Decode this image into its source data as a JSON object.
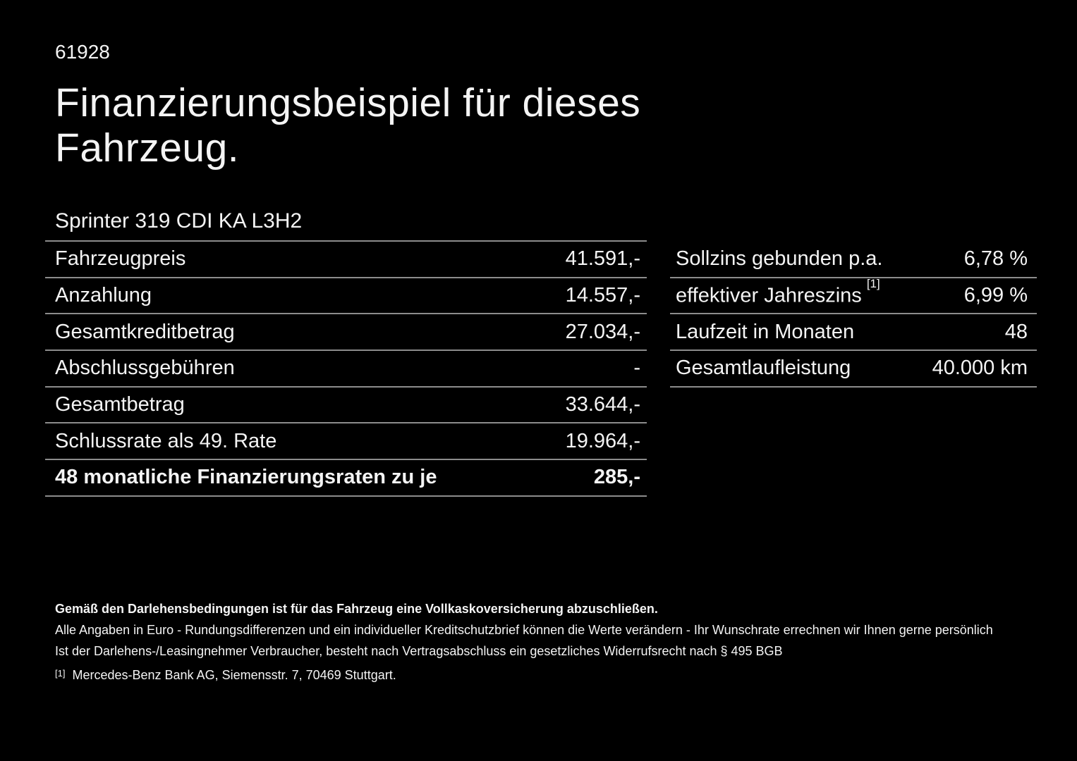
{
  "header": {
    "offer_id": "61928",
    "title_line1": "Finanzierungsbeispiel für dieses",
    "title_line2": "Fahrzeug.",
    "vehicle_model": "Sprinter 319 CDI KA L3H2"
  },
  "left_table": {
    "rows": [
      {
        "label": "Fahrzeugpreis",
        "value": "41.591,-"
      },
      {
        "label": "Anzahlung",
        "value": "14.557,-"
      },
      {
        "label": "Gesamtkreditbetrag",
        "value": "27.034,-"
      },
      {
        "label": "Abschlussgebühren",
        "value": "-"
      },
      {
        "label": "Gesamtbetrag",
        "value": "33.644,-"
      },
      {
        "label": "Schlussrate als 49. Rate",
        "value": "19.964,-"
      },
      {
        "label": "48 monatliche Finanzierungsraten zu je",
        "value": "285,-"
      }
    ]
  },
  "right_table": {
    "rows": [
      {
        "label": "Sollzins gebunden p.a.",
        "value": "6,78 %"
      },
      {
        "label": "effektiver Jahreszins",
        "footnote_marker": "[1]",
        "value": "6,99 %"
      },
      {
        "label": "Laufzeit in Monaten",
        "value": "48"
      },
      {
        "label": "Gesamtlaufleistung",
        "value": "40.000 km"
      }
    ]
  },
  "footer": {
    "insurance_note": "Gemäß den Darlehensbedingungen ist für das Fahrzeug eine Vollkaskoversicherung abzuschließen.",
    "disclaimer_line1": "Alle Angaben in Euro - Rundungsdifferenzen und ein individueller Kreditschutzbrief können die Werte verändern - Ihr Wunschrate errechnen wir Ihnen gerne persönlich",
    "disclaimer_line2": "Ist der Darlehens-/Leasingnehmer Verbraucher, besteht nach Vertragsabschluss ein gesetzliches Widerrufsrecht nach § 495 BGB",
    "footnote_marker": "[1]",
    "footnote_text": "Mercedes-Benz Bank AG, Siemensstr. 7, 70469 Stuttgart."
  },
  "colors": {
    "background": "#000000",
    "text": "#f4f4f4",
    "divider": "#8c8c8c"
  }
}
